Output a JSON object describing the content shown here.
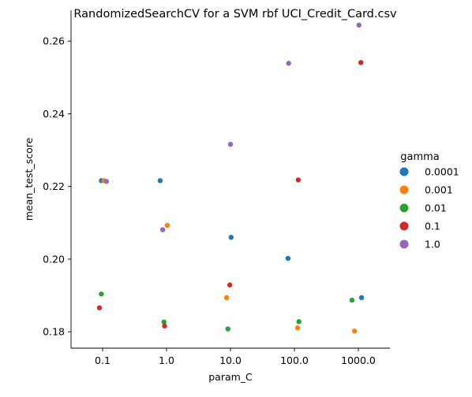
{
  "chart_data": {
    "type": "scatter",
    "title": "RandomizedSearchCV for a SVM rbf UCI_Credit_Card.csv",
    "xlabel": "param_C",
    "ylabel": "mean_test_score",
    "x_categories": [
      "0.1",
      "1.0",
      "10.0",
      "100.0",
      "1000.0"
    ],
    "ylim": [
      0.1755,
      0.2685
    ],
    "y_ticks": [
      0.18,
      0.2,
      0.22,
      0.24,
      0.26
    ],
    "y_tick_labels": [
      "0.18",
      "0.20",
      "0.22",
      "0.24",
      "0.26"
    ],
    "grid": false,
    "legend": {
      "title": "gamma",
      "placement": "right"
    },
    "series": [
      {
        "name": "0.0001",
        "color": "#1f77b4",
        "points": [
          {
            "x": "0.1",
            "y": 0.2216,
            "jitter": -0.02
          },
          {
            "x": "1.0",
            "y": 0.2216,
            "jitter": -0.1
          },
          {
            "x": "10.0",
            "y": 0.206,
            "jitter": 0.01
          },
          {
            "x": "100.0",
            "y": 0.2002,
            "jitter": -0.1
          },
          {
            "x": "1000.0",
            "y": 0.1894,
            "jitter": 0.05
          }
        ]
      },
      {
        "name": "0.001",
        "color": "#ff7f0e",
        "points": [
          {
            "x": "0.1",
            "y": 0.2216,
            "jitter": 0.02
          },
          {
            "x": "1.0",
            "y": 0.2093,
            "jitter": 0.01
          },
          {
            "x": "10.0",
            "y": 0.1894,
            "jitter": -0.06
          },
          {
            "x": "100.0",
            "y": 0.1811,
            "jitter": 0.05
          },
          {
            "x": "1000.0",
            "y": 0.1802,
            "jitter": -0.06
          }
        ]
      },
      {
        "name": "0.01",
        "color": "#2ca02c",
        "points": [
          {
            "x": "0.1",
            "y": 0.1904,
            "jitter": -0.02
          },
          {
            "x": "1.0",
            "y": 0.1827,
            "jitter": -0.04
          },
          {
            "x": "10.0",
            "y": 0.1808,
            "jitter": -0.04
          },
          {
            "x": "100.0",
            "y": 0.1828,
            "jitter": 0.07
          },
          {
            "x": "1000.0",
            "y": 0.1887,
            "jitter": -0.1
          }
        ]
      },
      {
        "name": "0.1",
        "color": "#d62728",
        "points": [
          {
            "x": "0.1",
            "y": 0.1866,
            "jitter": -0.05
          },
          {
            "x": "1.0",
            "y": 0.1816,
            "jitter": -0.03
          },
          {
            "x": "10.0",
            "y": 0.1929,
            "jitter": -0.01
          },
          {
            "x": "100.0",
            "y": 0.2218,
            "jitter": 0.06
          },
          {
            "x": "1000.0",
            "y": 0.2541,
            "jitter": 0.04
          }
        ]
      },
      {
        "name": "1.0",
        "color": "#9467bd",
        "points": [
          {
            "x": "0.1",
            "y": 0.2214,
            "jitter": 0.06
          },
          {
            "x": "1.0",
            "y": 0.2081,
            "jitter": -0.06
          },
          {
            "x": "10.0",
            "y": 0.2316,
            "jitter": 0.0
          },
          {
            "x": "100.0",
            "y": 0.2539,
            "jitter": -0.09
          },
          {
            "x": "1000.0",
            "y": 0.2644,
            "jitter": 0.01
          }
        ]
      }
    ]
  }
}
